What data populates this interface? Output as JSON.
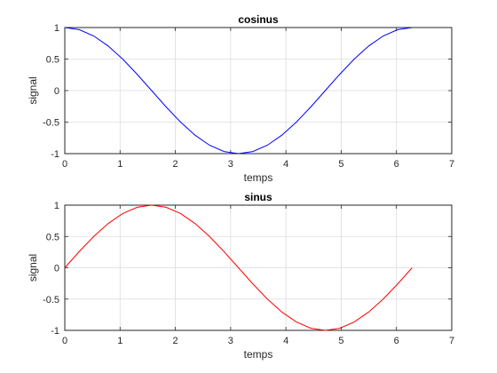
{
  "chart_data": [
    {
      "type": "line",
      "title": "cosinus",
      "xlabel": "temps",
      "ylabel": "signal",
      "xlim": [
        0,
        7
      ],
      "ylim": [
        -1,
        1
      ],
      "xticks": [
        "0",
        "1",
        "2",
        "3",
        "4",
        "5",
        "6",
        "7"
      ],
      "yticks": [
        "-1",
        "-0.5",
        "0",
        "0.5",
        "1"
      ],
      "grid": true,
      "series": [
        {
          "color": "#0000ff",
          "x": [
            0,
            0.2618,
            0.5236,
            0.7854,
            1.0472,
            1.309,
            1.5708,
            1.8326,
            2.0944,
            2.3562,
            2.618,
            2.8798,
            3.1416,
            3.4034,
            3.6652,
            3.927,
            4.1888,
            4.4506,
            4.7124,
            4.9742,
            5.236,
            5.4978,
            5.7596,
            6.0214,
            6.2832
          ],
          "values": [
            1,
            0.966,
            0.866,
            0.707,
            0.5,
            0.259,
            0,
            -0.259,
            -0.5,
            -0.707,
            -0.866,
            -0.966,
            -1,
            -0.966,
            -0.866,
            -0.707,
            -0.5,
            -0.259,
            0,
            0.259,
            0.5,
            0.707,
            0.866,
            0.966,
            1
          ]
        }
      ]
    },
    {
      "type": "line",
      "title": "sinus",
      "xlabel": "temps",
      "ylabel": "signal",
      "xlim": [
        0,
        7
      ],
      "ylim": [
        -1,
        1
      ],
      "xticks": [
        "0",
        "1",
        "2",
        "3",
        "4",
        "5",
        "6",
        "7"
      ],
      "yticks": [
        "-1",
        "-0.5",
        "0",
        "0.5",
        "1"
      ],
      "grid": true,
      "series": [
        {
          "color": "#ff0000",
          "x": [
            0,
            0.2618,
            0.5236,
            0.7854,
            1.0472,
            1.309,
            1.5708,
            1.8326,
            2.0944,
            2.3562,
            2.618,
            2.8798,
            3.1416,
            3.4034,
            3.6652,
            3.927,
            4.1888,
            4.4506,
            4.7124,
            4.9742,
            5.236,
            5.4978,
            5.7596,
            6.0214,
            6.2832
          ],
          "values": [
            0,
            0.259,
            0.5,
            0.707,
            0.866,
            0.966,
            1,
            0.966,
            0.866,
            0.707,
            0.5,
            0.259,
            0,
            -0.259,
            -0.5,
            -0.707,
            -0.866,
            -0.966,
            -1,
            -0.966,
            -0.866,
            -0.707,
            -0.5,
            -0.259,
            0
          ]
        }
      ]
    }
  ]
}
